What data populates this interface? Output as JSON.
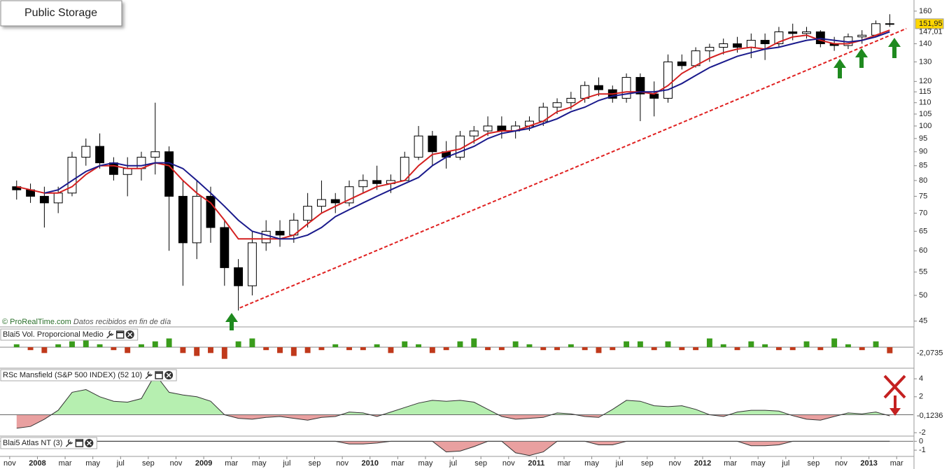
{
  "chart_data": [
    {
      "type": "candlestick",
      "title": "Public Storage",
      "note": {
        "brand": "© ProRealTime.com",
        "text": "Datos recibidos en fin de día"
      },
      "x": [
        0,
        1,
        2,
        3,
        4,
        5,
        6,
        7,
        8,
        9,
        10,
        11,
        12,
        13,
        14,
        15,
        16,
        17,
        18,
        19,
        20,
        21,
        22,
        23,
        24,
        25,
        26,
        27,
        28,
        29,
        30,
        31,
        32,
        33,
        34,
        35,
        36,
        37,
        38,
        39,
        40,
        41,
        42,
        43,
        44,
        45,
        46,
        47,
        48,
        49,
        50,
        51,
        52,
        53,
        54,
        55,
        56,
        57,
        58,
        59,
        60,
        61,
        62,
        63
      ],
      "open": [
        78,
        77,
        75,
        73,
        76,
        88,
        92,
        86,
        82,
        84,
        88,
        90,
        75,
        62,
        75,
        66,
        56,
        52,
        62,
        65,
        64,
        68,
        72,
        74,
        73,
        78,
        80,
        79,
        80,
        88,
        96,
        90,
        88,
        96,
        98,
        100,
        98,
        100,
        102,
        108,
        110,
        112,
        118,
        116,
        112,
        122,
        114,
        112,
        130,
        128,
        136,
        138,
        140,
        138,
        142,
        140,
        147,
        146,
        147,
        140,
        139,
        144,
        145,
        152
      ],
      "high": [
        80,
        79,
        78,
        78,
        90,
        95,
        97,
        88,
        88,
        90,
        110,
        92,
        80,
        80,
        78,
        68,
        58,
        65,
        68,
        68,
        70,
        76,
        80,
        76,
        80,
        82,
        85,
        82,
        90,
        100,
        98,
        94,
        98,
        100,
        104,
        104,
        102,
        104,
        110,
        112,
        115,
        120,
        122,
        118,
        124,
        124,
        120,
        134,
        134,
        138,
        140,
        143,
        144,
        146,
        146,
        150,
        152,
        150,
        148,
        144,
        146,
        148,
        154,
        158
      ],
      "low": [
        74,
        73,
        66,
        70,
        75,
        85,
        84,
        80,
        75,
        80,
        82,
        60,
        52,
        58,
        62,
        52,
        47,
        50,
        60,
        61,
        62,
        66,
        70,
        70,
        72,
        76,
        77,
        76,
        80,
        87,
        85,
        84,
        87,
        93,
        96,
        95,
        95,
        98,
        100,
        105,
        107,
        110,
        113,
        110,
        110,
        102,
        104,
        110,
        126,
        127,
        130,
        134,
        135,
        132,
        131,
        138,
        142,
        143,
        138,
        136,
        137,
        140,
        144,
        150
      ],
      "close": [
        77,
        75,
        73,
        76,
        88,
        92,
        86,
        82,
        84,
        88,
        90,
        75,
        62,
        75,
        66,
        56,
        52,
        62,
        65,
        64,
        68,
        72,
        74,
        73,
        78,
        80,
        79,
        80,
        88,
        96,
        90,
        88,
        96,
        98,
        100,
        98,
        100,
        102,
        108,
        110,
        112,
        118,
        116,
        112,
        122,
        114,
        112,
        130,
        128,
        136,
        138,
        140,
        138,
        142,
        140,
        147,
        146,
        147,
        140,
        139,
        144,
        145,
        152,
        151.95
      ],
      "up_color": "#ffffff",
      "down_color": "#000000",
      "series": [
        {
          "color": "#d42020",
          "values": [
            78,
            77,
            76,
            76,
            78,
            82,
            85,
            85,
            84,
            84,
            86,
            85,
            80,
            76,
            73,
            68,
            63,
            63,
            63,
            63,
            64,
            67,
            70,
            72,
            74,
            76,
            78,
            79,
            80,
            85,
            89,
            90,
            91,
            94,
            97,
            98,
            98,
            100,
            102,
            106,
            108,
            112,
            114,
            114,
            115,
            115,
            114,
            118,
            124,
            128,
            132,
            135,
            137,
            138,
            137,
            141,
            144,
            145,
            142,
            140,
            140,
            142,
            145,
            148
          ]
        },
        {
          "color": "#1a1a8c",
          "values": [
            null,
            null,
            76,
            77,
            80,
            83,
            85,
            86,
            85,
            85,
            86,
            86,
            84,
            80,
            76,
            72,
            68,
            65,
            64,
            63,
            63,
            64,
            66,
            69,
            71,
            73,
            75,
            77,
            79,
            81,
            85,
            88,
            90,
            92,
            95,
            97,
            98,
            99,
            101,
            103,
            106,
            108,
            111,
            113,
            114,
            115,
            115,
            116,
            119,
            123,
            127,
            130,
            133,
            135,
            137,
            138,
            140,
            142,
            143,
            142,
            141,
            142,
            144,
            147.01
          ]
        }
      ],
      "trendline": {
        "color": "#e02020",
        "x": [
          16.1,
          64.2
        ],
        "values": [
          47.5,
          149
        ]
      },
      "last_labels": [
        {
          "value": 151.95,
          "label": "151,95",
          "color": "#ffd700",
          "box": true
        },
        {
          "value": 147.01,
          "label": "147,01",
          "color": "#1a1a8c",
          "box": false
        }
      ],
      "log_scale": true,
      "xlim": [
        -1.2,
        64.7
      ],
      "ylim": [
        44.2,
        166.5
      ],
      "yticks": [
        160,
        140,
        130,
        120,
        115,
        110,
        105,
        100,
        95,
        90,
        85,
        80,
        75,
        70,
        65,
        60,
        55,
        50,
        45
      ],
      "xticks": [
        {
          "value": -0.5,
          "label": "nov"
        },
        {
          "value": 1.5,
          "label": "2008"
        },
        {
          "value": 3.5,
          "label": "mar"
        },
        {
          "value": 5.5,
          "label": "may"
        },
        {
          "value": 7.5,
          "label": "jul"
        },
        {
          "value": 9.5,
          "label": "sep"
        },
        {
          "value": 11.5,
          "label": "nov"
        },
        {
          "value": 13.5,
          "label": "2009"
        },
        {
          "value": 15.5,
          "label": "mar"
        },
        {
          "value": 17.5,
          "label": "may"
        },
        {
          "value": 19.5,
          "label": "jul"
        },
        {
          "value": 21.5,
          "label": "sep"
        },
        {
          "value": 23.5,
          "label": "nov"
        },
        {
          "value": 25.5,
          "label": "2010"
        },
        {
          "value": 27.5,
          "label": "mar"
        },
        {
          "value": 29.5,
          "label": "may"
        },
        {
          "value": 31.5,
          "label": "jul"
        },
        {
          "value": 33.5,
          "label": "sep"
        },
        {
          "value": 35.5,
          "label": "nov"
        },
        {
          "value": 37.5,
          "label": "2011"
        },
        {
          "value": 39.5,
          "label": "mar"
        },
        {
          "value": 41.5,
          "label": "may"
        },
        {
          "value": 43.5,
          "label": "jul"
        },
        {
          "value": 45.5,
          "label": "sep"
        },
        {
          "value": 47.5,
          "label": "nov"
        },
        {
          "value": 49.5,
          "label": "2012"
        },
        {
          "value": 51.5,
          "label": "mar"
        },
        {
          "value": 53.5,
          "label": "may"
        },
        {
          "value": 55.5,
          "label": "jul"
        },
        {
          "value": 57.5,
          "label": "sep"
        },
        {
          "value": 59.5,
          "label": "nov"
        },
        {
          "value": 61.5,
          "label": "2013"
        },
        {
          "value": 63.5,
          "label": "mar"
        }
      ]
    },
    {
      "type": "bar",
      "title": "Blai5 Vol. Proporcional Medio",
      "values": [
        1,
        -1,
        -2,
        1,
        2,
        3,
        1,
        -1,
        -2,
        1,
        2,
        3,
        -2,
        -3,
        -2,
        -4,
        2,
        3,
        -1,
        -2,
        -3,
        -2,
        -1,
        1,
        -1,
        -1,
        1,
        -2,
        2,
        1,
        -2,
        -1,
        2,
        3,
        -1,
        -1,
        2,
        1,
        -1,
        -1,
        1,
        -1,
        -2,
        -1,
        2,
        2,
        -1,
        2,
        -1,
        -1,
        3,
        1,
        -1,
        2,
        1,
        -1,
        -1,
        2,
        -1,
        3,
        1,
        -1,
        2,
        -2.0735
      ],
      "positive_color": "#3a9c1c",
      "negative_color": "#c0391b",
      "ylim": [
        -6,
        6
      ],
      "last_label": {
        "value": -2.0735,
        "label": "-2,0735"
      }
    },
    {
      "type": "area",
      "title": "RSc Mansfield (S&P 500 INDEX) (52 10)",
      "values": [
        -1.5,
        -1.3,
        -0.5,
        0.5,
        2.5,
        2.8,
        2,
        1.5,
        1.4,
        1.8,
        4.5,
        2.5,
        2.2,
        2,
        1.5,
        0,
        -0.4,
        -0.5,
        -0.3,
        -0.2,
        -0.4,
        -0.6,
        -0.3,
        -0.2,
        0.3,
        0.2,
        -0.2,
        0.3,
        0.8,
        1.3,
        1.6,
        1.5,
        1.6,
        1.4,
        0.6,
        -0.2,
        -0.5,
        -0.4,
        -0.3,
        0.2,
        0.1,
        -0.2,
        -0.3,
        0.6,
        1.6,
        1.5,
        1,
        0.9,
        1,
        0.6,
        0,
        -0.2,
        0.3,
        0.5,
        0.5,
        0.4,
        -0.1,
        -0.5,
        -0.6,
        -0.2,
        0.2,
        0.1,
        0.3,
        -0.1236
      ],
      "positive_color": "#b6efb0",
      "negative_color": "#e9a0a0",
      "line_color": "#333333",
      "ylim": [
        -2.3,
        5.1
      ],
      "yticks": [
        4,
        2,
        -2
      ],
      "last_label": {
        "value": -0.1236,
        "label": "-0,1236"
      }
    },
    {
      "type": "area",
      "title": "Blai5 Atlas NT (3)",
      "values": [
        0,
        0,
        0,
        0,
        0,
        0,
        0,
        0,
        0,
        0,
        0,
        0,
        0,
        0,
        0,
        0,
        0,
        0,
        0,
        0,
        0,
        0,
        0,
        0,
        -0.3,
        -0.3,
        -0.2,
        0,
        0,
        0,
        0,
        -1.2,
        -1.1,
        -0.6,
        0,
        0,
        -1.3,
        -1.6,
        -1.2,
        0,
        0,
        0,
        -0.4,
        -0.4,
        0,
        0,
        0,
        0,
        0,
        0,
        0,
        0,
        0,
        -0.5,
        -0.5,
        -0.4,
        0,
        0,
        0,
        0,
        0,
        0,
        0,
        0
      ],
      "positive_color": "#b6efb0",
      "negative_color": "#e9a0a0",
      "line_color": "#333333",
      "ylim": [
        -1.7,
        0.5
      ],
      "yticks": [
        0,
        -1
      ]
    }
  ]
}
